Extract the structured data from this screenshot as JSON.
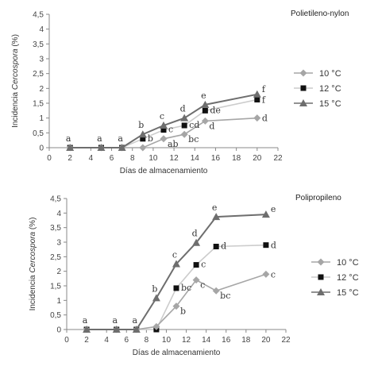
{
  "chart_data": [
    {
      "type": "line",
      "title": "Polietileno-nylon",
      "xlabel": "Días de almacenamiento",
      "ylabel_prefix": "Incidencia ",
      "ylabel_italic": "Cercospora",
      "ylabel_suffix": " (%)",
      "xlim": [
        0,
        22
      ],
      "ylim": [
        0,
        4.5
      ],
      "xticks": [
        "0",
        "2",
        "4",
        "6",
        "8",
        "10",
        "12",
        "14",
        "16",
        "18",
        "20",
        "22"
      ],
      "yticks": [
        "0",
        "0,5",
        "1",
        "1,5",
        "2",
        "2,5",
        "3",
        "3,5",
        "4",
        "4,5"
      ],
      "grid": false,
      "legend_position": "right",
      "series": [
        {
          "name": "10 °C",
          "color": "#a6a6a6",
          "marker": "diamond",
          "x": [
            2,
            5,
            7,
            9,
            11,
            13,
            15,
            20
          ],
          "y": [
            0,
            0,
            0,
            0,
            0.3,
            0.45,
            0.9,
            1.0
          ],
          "labels": [
            "",
            "",
            "",
            "",
            "ab",
            "bc",
            "d",
            "d"
          ]
        },
        {
          "name": "12 °C",
          "color": "#cccccc",
          "marker": "square",
          "x": [
            2,
            5,
            7,
            9,
            11,
            13,
            15,
            20
          ],
          "y": [
            0,
            0,
            0,
            0.3,
            0.6,
            0.75,
            1.25,
            1.62
          ],
          "labels": [
            "",
            "",
            "",
            "b",
            "c",
            "cd",
            "de",
            "f"
          ]
        },
        {
          "name": "15 °C",
          "color": "#6e6e6e",
          "marker": "triangle",
          "x": [
            2,
            5,
            7,
            9,
            11,
            13,
            15,
            20
          ],
          "y": [
            0,
            0,
            0,
            0.45,
            0.75,
            1.0,
            1.45,
            1.8
          ],
          "labels": [
            "a",
            "a",
            "a",
            "b",
            "c",
            "d",
            "e",
            "f"
          ]
        }
      ]
    },
    {
      "type": "line",
      "title": "Polipropileno",
      "xlabel": "Días de almacenamiento",
      "ylabel_prefix": "Incidencia ",
      "ylabel_italic": "Cercospora",
      "ylabel_suffix": " (%)",
      "xlim": [
        0,
        22
      ],
      "ylim": [
        0,
        4.5
      ],
      "xticks": [
        "0",
        "2",
        "4",
        "6",
        "8",
        "10",
        "12",
        "14",
        "16",
        "18",
        "20",
        "22"
      ],
      "yticks": [
        "0",
        "0,5",
        "1",
        "1,5",
        "2",
        "2,5",
        "3",
        "3,5",
        "4",
        "4,5"
      ],
      "grid": false,
      "legend_position": "right",
      "series": [
        {
          "name": "10 °C",
          "color": "#a6a6a6",
          "marker": "diamond",
          "x": [
            2,
            5,
            7,
            9,
            11,
            13,
            15,
            20
          ],
          "y": [
            0,
            0,
            0,
            0.1,
            0.8,
            1.7,
            1.33,
            1.9
          ],
          "labels": [
            "",
            "",
            "",
            "",
            "b",
            "c",
            "bc",
            "c"
          ]
        },
        {
          "name": "12 °C",
          "color": "#cccccc",
          "marker": "square",
          "x": [
            2,
            5,
            7,
            9,
            11,
            13,
            15,
            20
          ],
          "y": [
            0,
            0,
            0,
            0,
            1.42,
            2.22,
            2.85,
            2.9
          ],
          "labels": [
            "",
            "",
            "",
            "",
            "bc",
            "c",
            "d",
            "d"
          ]
        },
        {
          "name": "15 °C",
          "color": "#6e6e6e",
          "marker": "triangle",
          "x": [
            2,
            5,
            7,
            9,
            11,
            13,
            15,
            20
          ],
          "y": [
            0,
            0,
            0,
            1.08,
            2.25,
            2.98,
            3.87,
            3.95
          ],
          "labels": [
            "a",
            "a",
            "a",
            "b",
            "c",
            "d",
            "e",
            "e"
          ]
        }
      ]
    }
  ]
}
